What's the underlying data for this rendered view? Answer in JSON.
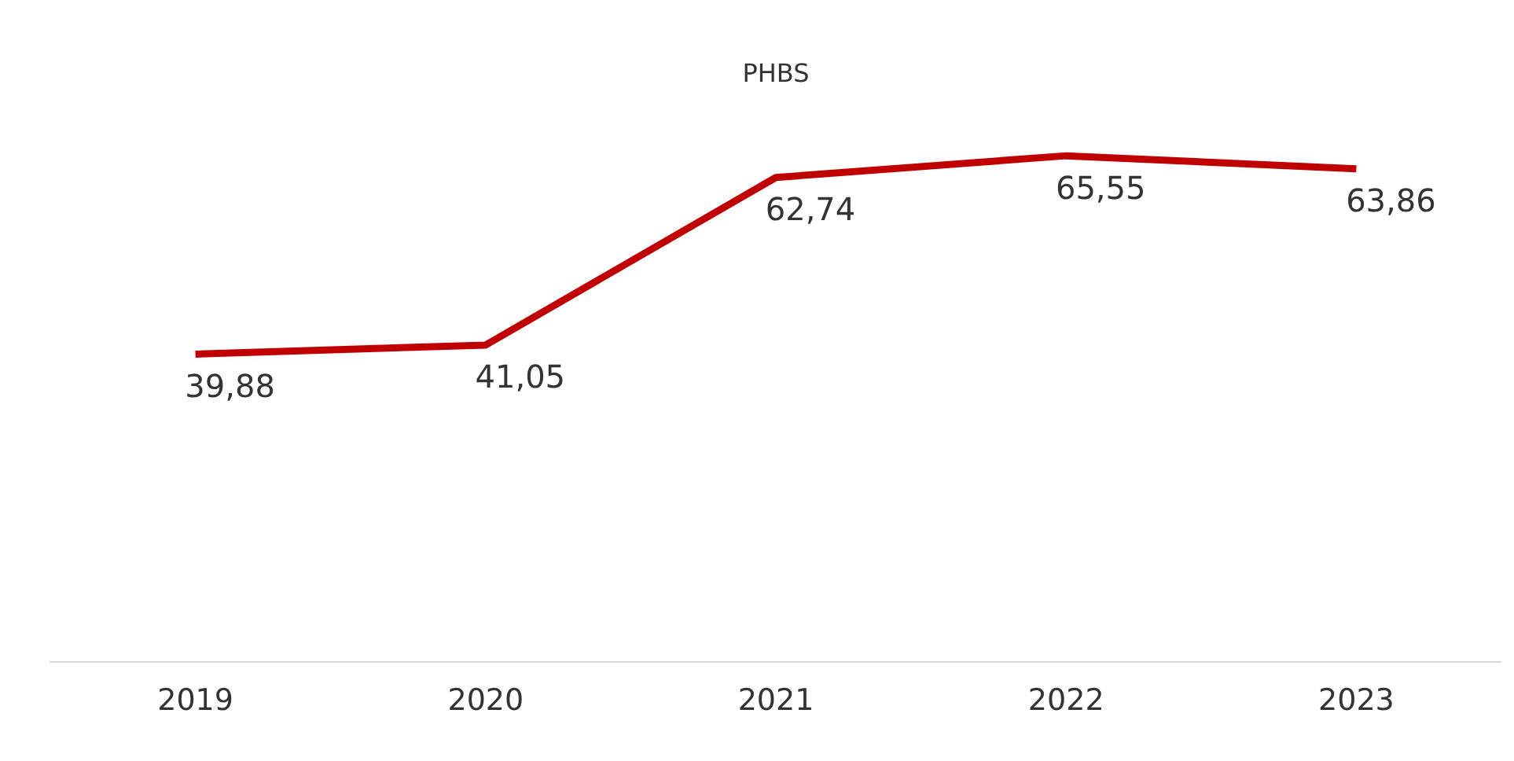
{
  "chart_data": {
    "type": "line",
    "title": "PHBS",
    "categories": [
      "2019",
      "2020",
      "2021",
      "2022",
      "2023"
    ],
    "series": [
      {
        "color": "#c00000",
        "values": [
          39.88,
          41.05,
          62.74,
          65.55,
          63.86
        ],
        "value_labels": [
          "39,88",
          "41,05",
          "62,74",
          "65,55",
          "63,86"
        ]
      }
    ],
    "tick_labels": "x",
    "grid": false,
    "legend": false,
    "marker": "none"
  }
}
